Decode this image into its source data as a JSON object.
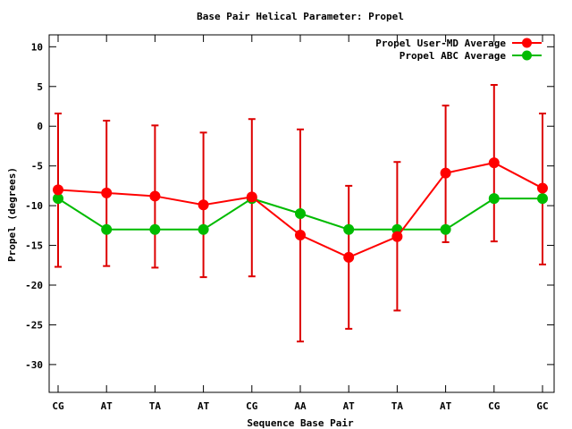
{
  "chart_data": {
    "type": "line",
    "title": "Base Pair Helical Parameter: Propel",
    "xlabel": "Sequence Base Pair",
    "ylabel": "Propel (degrees)",
    "categories": [
      "CG",
      "AT",
      "TA",
      "AT",
      "CG",
      "AA",
      "AT",
      "TA",
      "AT",
      "CG",
      "GC"
    ],
    "ylim": [
      -33.5,
      11.5
    ],
    "yticks": [
      10,
      5,
      0,
      -5,
      -10,
      -15,
      -20,
      -25,
      -30
    ],
    "grid": false,
    "legend_position": "top-right",
    "series": [
      {
        "name": "Propel User-MD Average",
        "color": "#ff0000",
        "errorbar_color": "#dd0000",
        "values": [
          -8.0,
          -8.4,
          -8.8,
          -9.9,
          -8.9,
          -13.7,
          -16.5,
          -13.9,
          -5.9,
          -4.6,
          -7.8
        ],
        "error_low": [
          -17.7,
          -17.6,
          -17.8,
          -19.0,
          -18.9,
          -27.1,
          -25.5,
          -23.2,
          -14.6,
          -14.5,
          -17.4
        ],
        "error_high": [
          1.6,
          0.7,
          0.1,
          -0.8,
          0.9,
          -0.4,
          -7.5,
          -4.5,
          2.6,
          5.2,
          1.6
        ]
      },
      {
        "name": "Propel ABC Average",
        "color": "#00bb00",
        "values": [
          -9.1,
          -13.0,
          -13.0,
          -13.0,
          -9.1,
          -11.0,
          -13.0,
          -13.0,
          -13.0,
          -9.1,
          -9.1
        ]
      }
    ]
  }
}
